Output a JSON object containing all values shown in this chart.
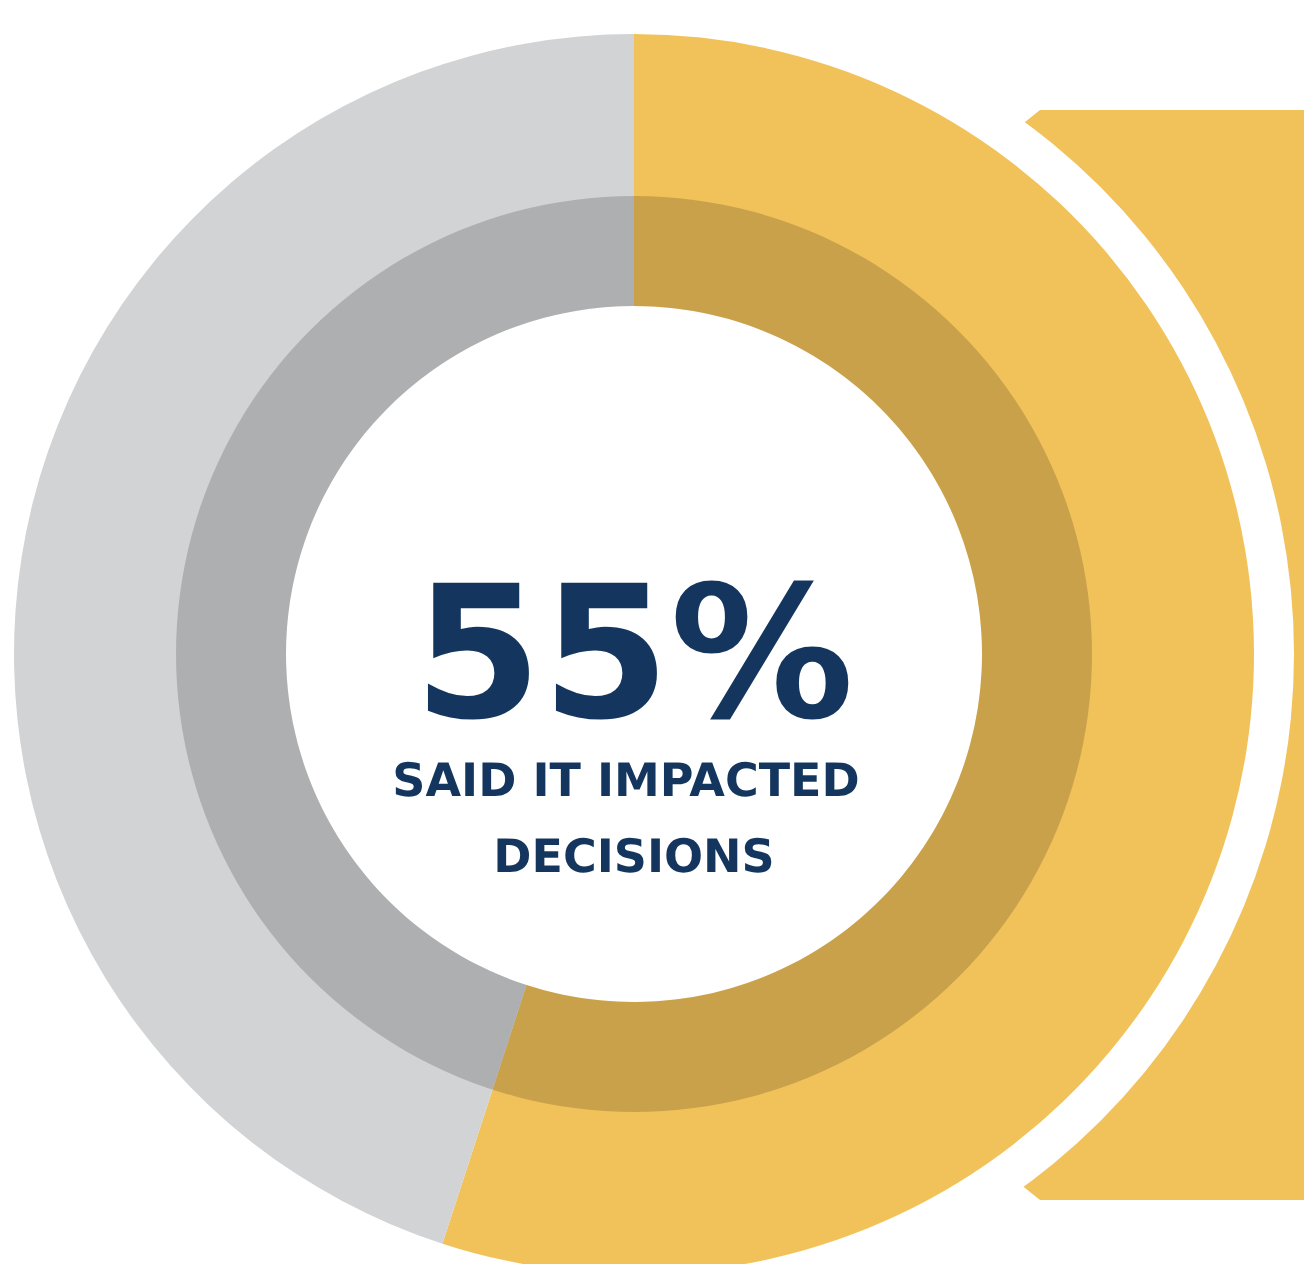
{
  "chart_data": {
    "type": "donut",
    "categories": [
      null,
      null
    ],
    "values": [
      55,
      45
    ],
    "colors": [
      "#f2c25a",
      "#d1d3d4"
    ],
    "value_labels": [
      "55%",
      null
    ],
    "annotations": [
      "SAID IT IMPACTED DECISIONS"
    ]
  }
}
